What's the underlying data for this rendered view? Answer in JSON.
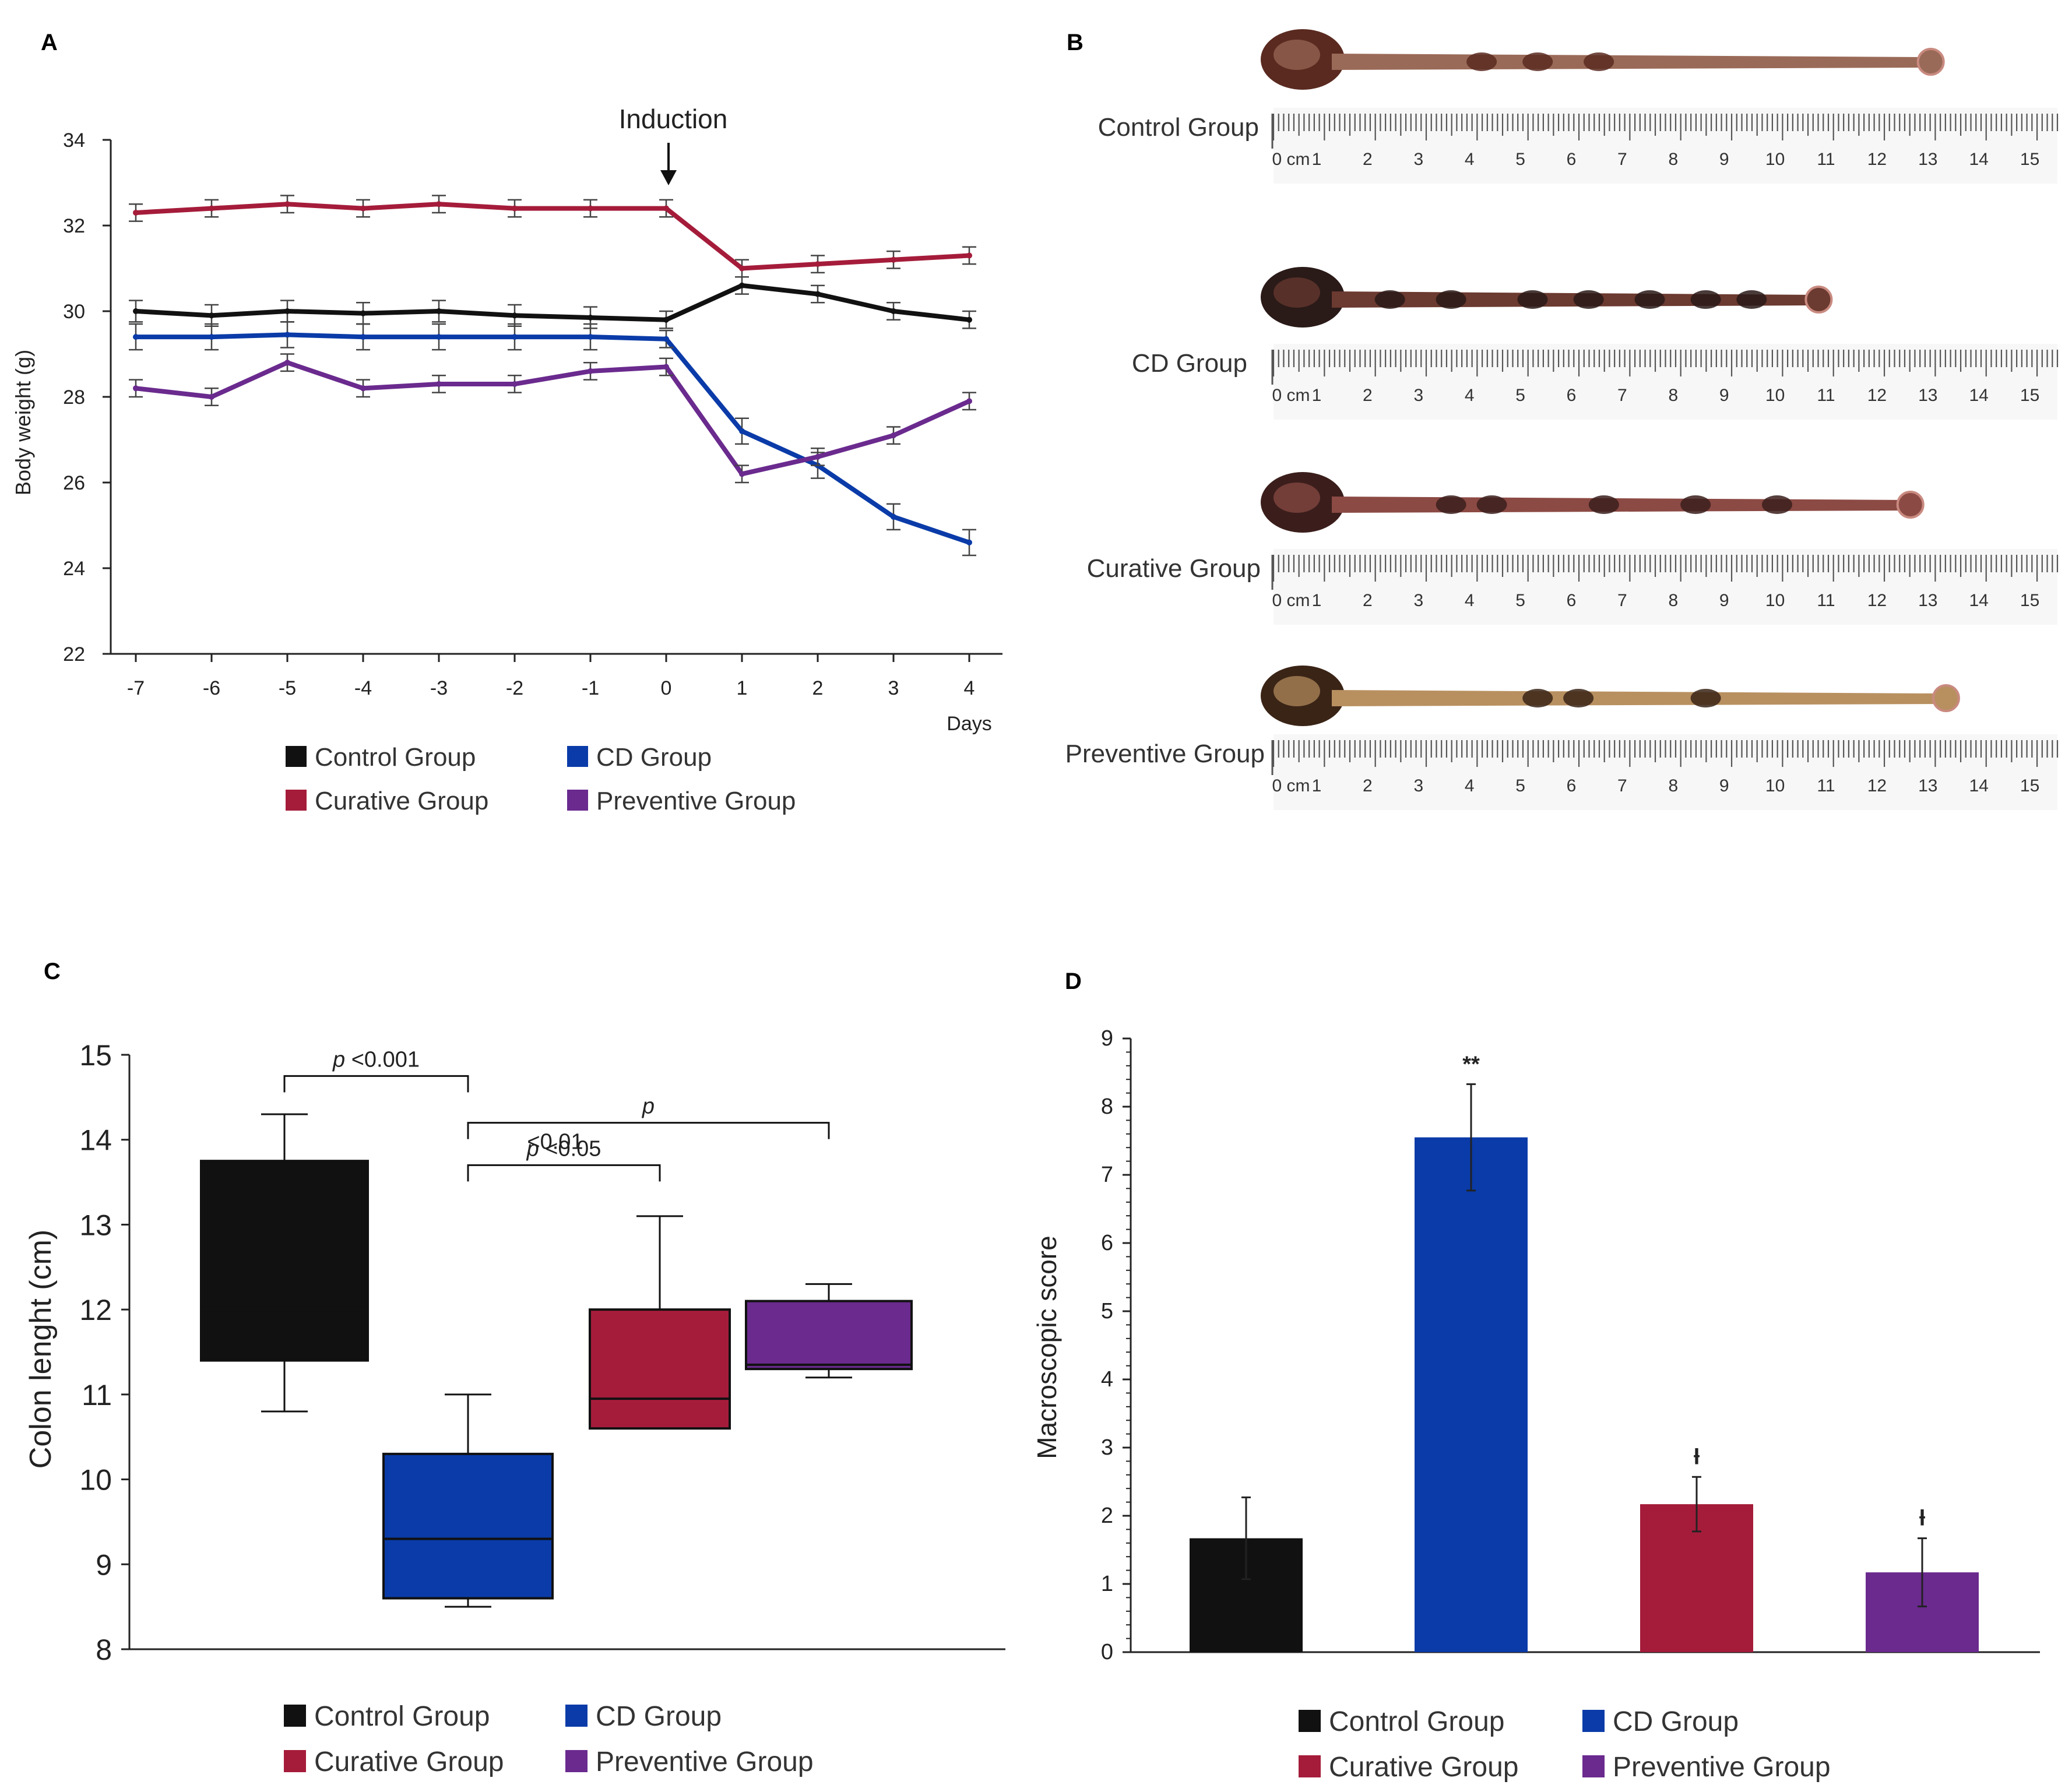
{
  "colors": {
    "control": "#111111",
    "cd": "#0a3ba8",
    "curative": "#a51c3a",
    "preventive": "#6a2a8e",
    "axis": "#222222"
  },
  "legend": [
    {
      "key": "control",
      "label": "Control Group"
    },
    {
      "key": "cd",
      "label": "CD Group"
    },
    {
      "key": "curative",
      "label": "Curative Group"
    },
    {
      "key": "preventive",
      "label": "Preventive Group"
    }
  ],
  "chart_data": [
    {
      "panel": "A",
      "type": "line",
      "ylabel": "Body weight (g)",
      "xlabel": "Days",
      "annotation": "Induction",
      "annotation_x": 0,
      "x": [
        -7,
        -6,
        -5,
        -4,
        -3,
        -2,
        -1,
        0,
        1,
        2,
        3,
        4
      ],
      "x_ticks": [
        "-7",
        "-6",
        "-5",
        "-4",
        "-3",
        "-2",
        "-1",
        "0",
        "1",
        "2",
        "3",
        "4"
      ],
      "ylim": [
        22,
        34
      ],
      "y_ticks": [
        22,
        24,
        26,
        28,
        30,
        32,
        34
      ],
      "series": [
        {
          "key": "curative",
          "name": "Curative Group",
          "values": [
            32.3,
            32.4,
            32.5,
            32.4,
            32.5,
            32.4,
            32.4,
            32.4,
            31.0,
            31.1,
            31.2,
            31.3
          ],
          "errors": [
            0.2,
            0.2,
            0.2,
            0.2,
            0.2,
            0.2,
            0.2,
            0.2,
            0.2,
            0.2,
            0.2,
            0.2
          ]
        },
        {
          "key": "control",
          "name": "Control Group",
          "values": [
            30.0,
            29.9,
            30.0,
            29.95,
            30.0,
            29.9,
            29.85,
            29.8,
            30.6,
            30.4,
            30.0,
            29.8
          ],
          "errors": [
            0.25,
            0.25,
            0.25,
            0.25,
            0.25,
            0.25,
            0.25,
            0.2,
            0.2,
            0.2,
            0.2,
            0.2
          ]
        },
        {
          "key": "cd",
          "name": "CD Group",
          "values": [
            29.4,
            29.4,
            29.45,
            29.4,
            29.4,
            29.4,
            29.4,
            29.35,
            27.2,
            26.4,
            25.2,
            24.6
          ],
          "errors": [
            0.3,
            0.3,
            0.3,
            0.3,
            0.3,
            0.3,
            0.3,
            0.2,
            0.3,
            0.3,
            0.3,
            0.3
          ]
        },
        {
          "key": "preventive",
          "name": "Preventive Group",
          "values": [
            28.2,
            28.0,
            28.8,
            28.2,
            28.3,
            28.3,
            28.6,
            28.7,
            26.2,
            26.6,
            27.1,
            27.9
          ],
          "errors": [
            0.2,
            0.2,
            0.2,
            0.2,
            0.2,
            0.2,
            0.2,
            0.2,
            0.2,
            0.2,
            0.2,
            0.2
          ]
        }
      ]
    },
    {
      "panel": "C",
      "type": "box",
      "ylabel": "Colon lenght (cm)",
      "ylim": [
        8,
        15
      ],
      "y_ticks": [
        8,
        9,
        10,
        11,
        12,
        13,
        14,
        15
      ],
      "categories": [
        "Control Group",
        "CD Group",
        "Curative Group",
        "Preventive Group"
      ],
      "boxes": [
        {
          "key": "control",
          "min": 10.8,
          "q1": 11.4,
          "median": 12.05,
          "q3": 13.75,
          "max": 14.3
        },
        {
          "key": "cd",
          "min": 8.5,
          "q1": 8.6,
          "median": 9.3,
          "q3": 10.3,
          "max": 11.0
        },
        {
          "key": "curative",
          "min": 10.6,
          "q1": 10.6,
          "median": 10.95,
          "q3": 12.0,
          "max": 13.1
        },
        {
          "key": "preventive",
          "min": 11.2,
          "q1": 11.3,
          "median": 11.35,
          "q3": 12.1,
          "max": 12.3
        }
      ],
      "comparisons": [
        {
          "from": 0,
          "to": 1,
          "level": 14.75,
          "text_italic": "p",
          "text": " <0.001"
        },
        {
          "from": 1,
          "to": 3,
          "level": 14.2,
          "text_italic": "p",
          "text": "",
          "text_line2": "<0.01"
        },
        {
          "from": 1,
          "to": 2,
          "level": 13.7,
          "text_italic": "p",
          "text": " <0.05"
        }
      ]
    },
    {
      "panel": "D",
      "type": "bar",
      "ylabel": "Macroscopic score",
      "ylim": [
        0,
        9
      ],
      "y_ticks": [
        "0",
        "1",
        "2",
        "3",
        "4",
        "5",
        "6",
        "7",
        "8",
        "9"
      ],
      "categories": [
        "Control Group",
        "CD Group",
        "Curative Group",
        "Preventive Group"
      ],
      "bars": [
        {
          "key": "control",
          "value": 1.67,
          "error": 0.6,
          "mark": ""
        },
        {
          "key": "cd",
          "value": 7.55,
          "error": 0.78,
          "mark": "**"
        },
        {
          "key": "curative",
          "value": 2.17,
          "error": 0.4,
          "mark": "ƚ"
        },
        {
          "key": "preventive",
          "value": 1.17,
          "error": 0.5,
          "mark": "ƚ"
        }
      ]
    }
  ],
  "panel_b": {
    "label": "B",
    "rows": [
      {
        "label": "Control Group",
        "length_cm": 13.2,
        "tissue": "#9a6a58",
        "dark": "#5a2a20",
        "spots": [
          4.2,
          5.3,
          6.5
        ]
      },
      {
        "label": "CD Group",
        "length_cm": 11.0,
        "tissue": "#6b3a30",
        "dark": "#2a1a18",
        "spots": [
          2.4,
          3.6,
          5.2,
          6.3,
          7.5,
          8.6,
          9.5
        ]
      },
      {
        "label": "Curative Group",
        "length_cm": 12.8,
        "tissue": "#8c4a44",
        "dark": "#3b1e1c",
        "spots": [
          3.6,
          4.4,
          6.6,
          8.4,
          10.0
        ]
      },
      {
        "label": "Preventive Group",
        "length_cm": 13.5,
        "tissue": "#b89060",
        "dark": "#3a2416",
        "spots": [
          5.3,
          6.1,
          8.6
        ]
      }
    ],
    "ruler_ticks": [
      "0 cm",
      "1",
      "2",
      "3",
      "4",
      "5",
      "6",
      "7",
      "8",
      "9",
      "10",
      "11",
      "12",
      "13",
      "14",
      "15"
    ]
  },
  "panel_labels": {
    "a": "A",
    "c": "C",
    "d": "D"
  }
}
